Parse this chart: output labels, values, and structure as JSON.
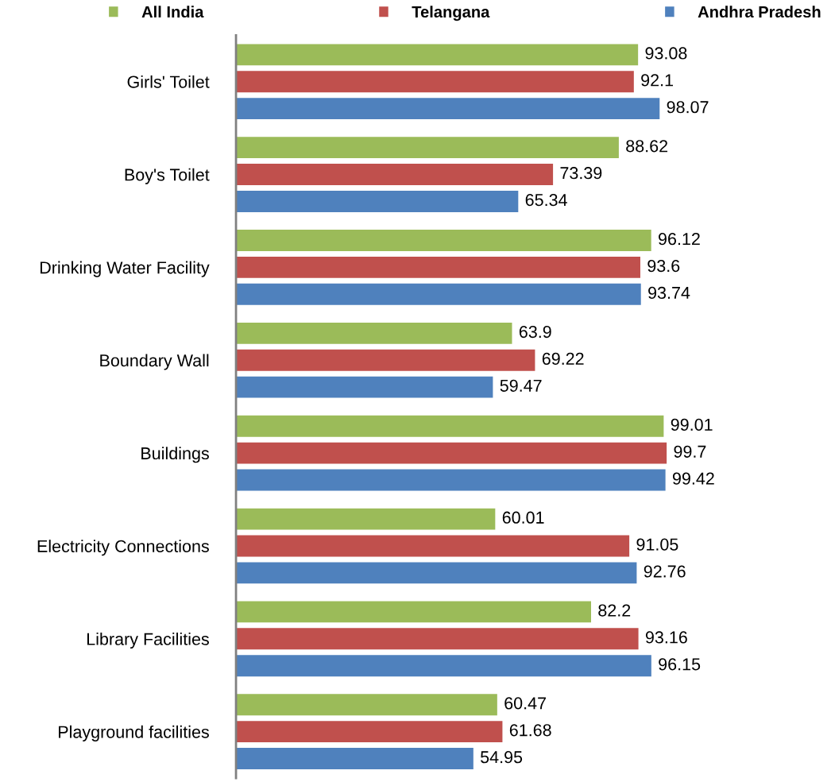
{
  "chart_data": {
    "type": "bar",
    "orientation": "horizontal",
    "data_labels": true,
    "legend": "top",
    "grid": false,
    "categories": [
      "Girls' Toilet",
      "Boy's Toilet",
      "Drinking Water Facility",
      "Boundary Wall",
      "Buildings",
      "Electricity Connections",
      "Library Facilities",
      "Playground facilities"
    ],
    "series": [
      {
        "name": "All India",
        "color": "#9bbb59",
        "values": [
          93.08,
          88.62,
          96.12,
          63.9,
          99.01,
          60.01,
          82.2,
          60.47
        ]
      },
      {
        "name": "Telangana",
        "color": "#c0504d",
        "values": [
          92.1,
          73.39,
          93.6,
          69.22,
          99.7,
          91.05,
          93.16,
          61.68
        ]
      },
      {
        "name": "Andhra Pradesh",
        "color": "#4f81bd",
        "values": [
          98.07,
          65.34,
          93.74,
          59.47,
          99.42,
          92.76,
          96.15,
          54.95
        ]
      }
    ]
  }
}
